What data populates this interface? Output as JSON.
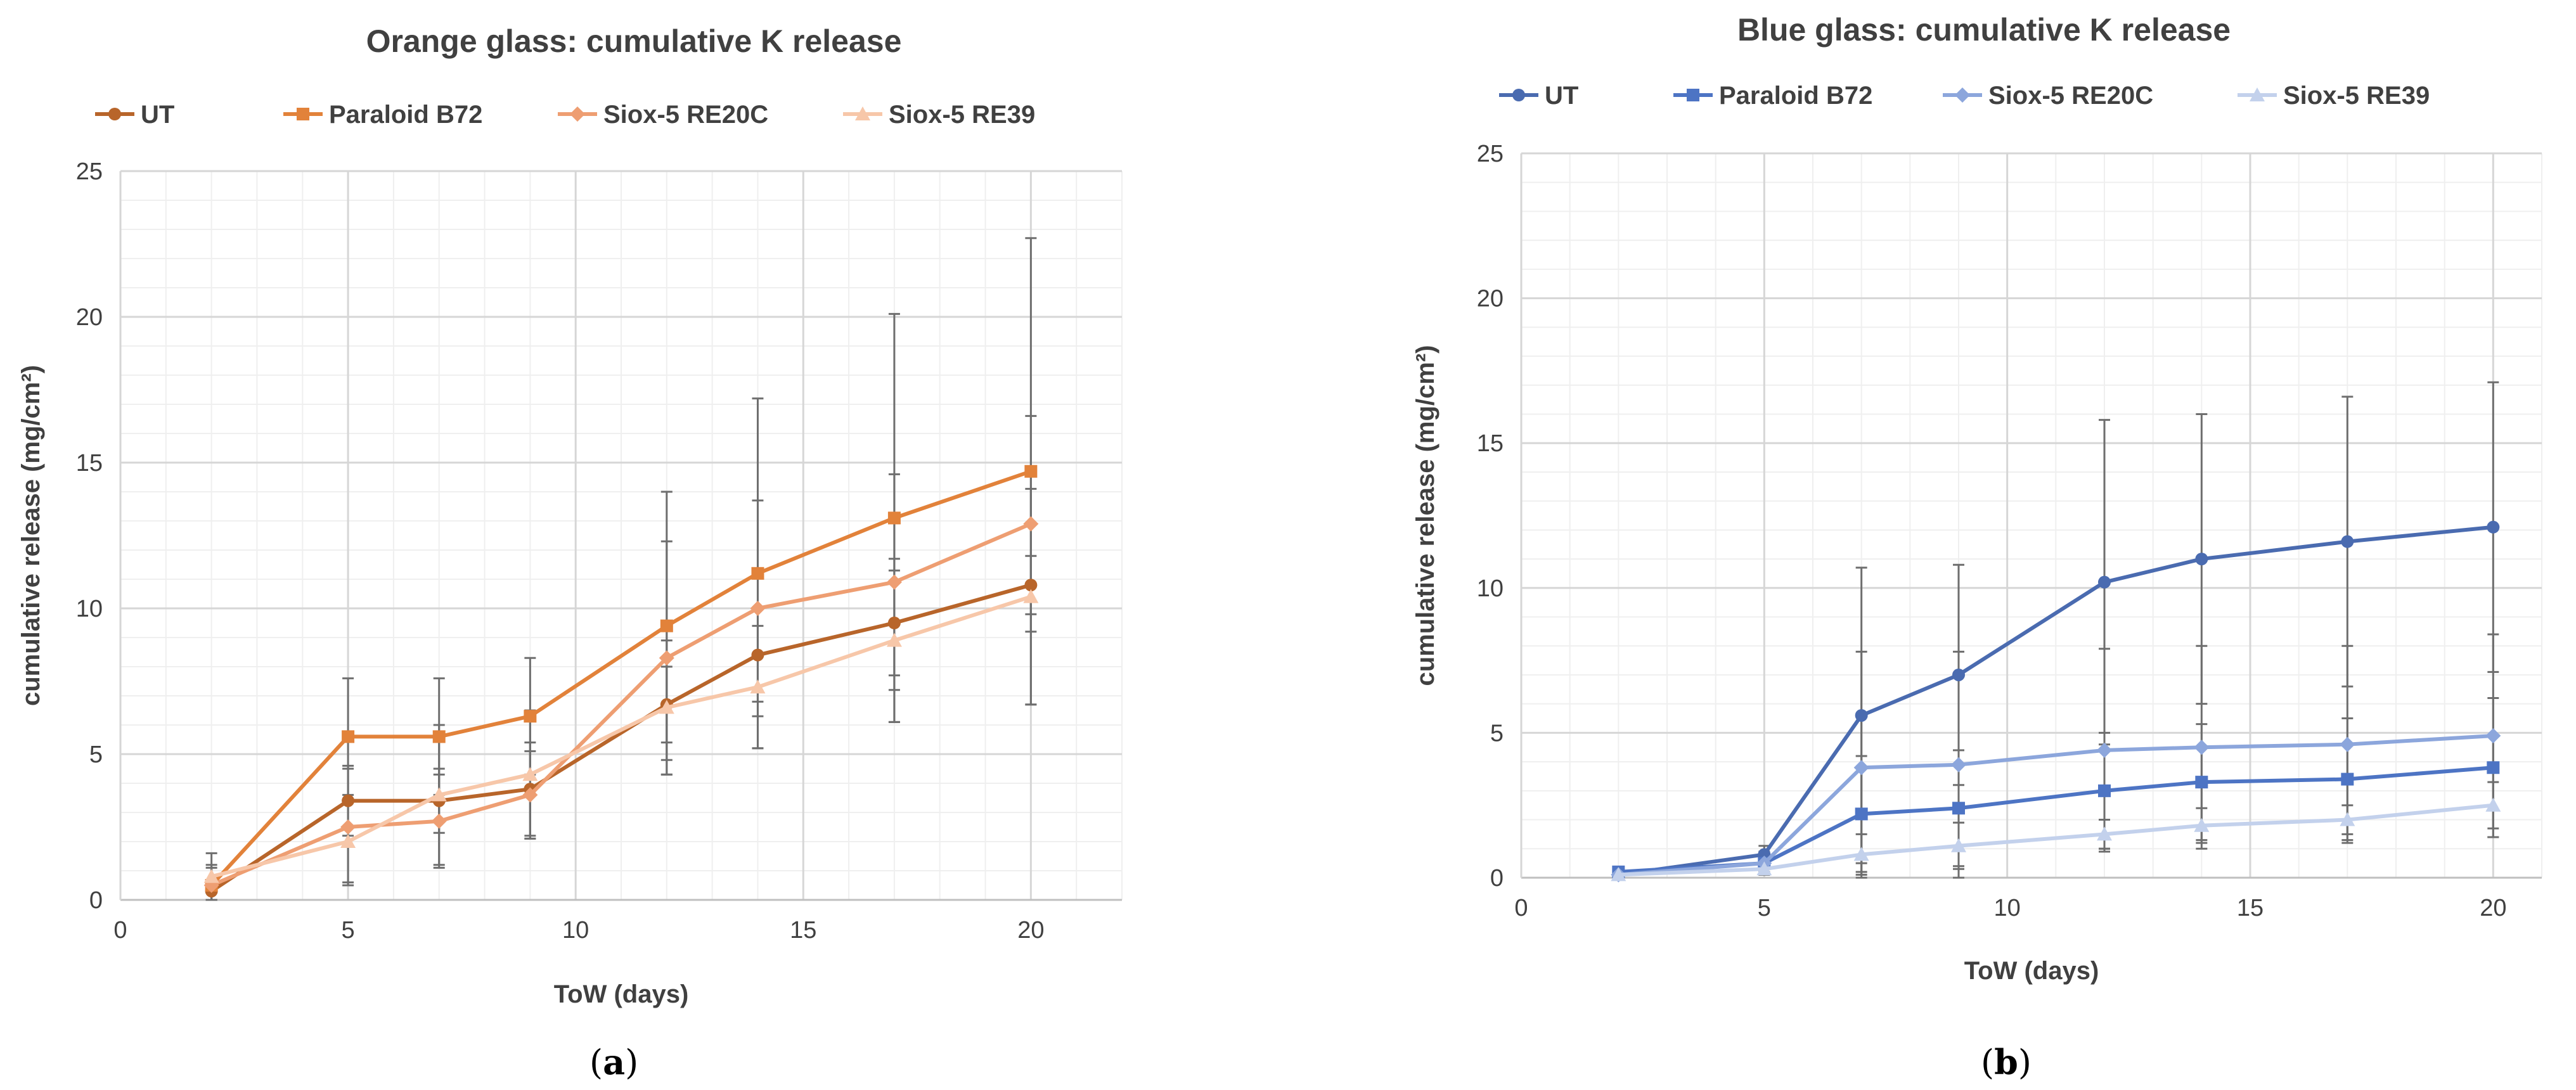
{
  "panels": [
    {
      "label_open": "(",
      "label_letter": "a",
      "label_close": ")"
    },
    {
      "label_open": "(",
      "label_letter": "b",
      "label_close": ")"
    }
  ],
  "chart_data": [
    {
      "type": "line",
      "title": "Orange glass: cumulative K release",
      "xlabel": "ToW (days)",
      "ylabel": "cumulative release (mg/cm²)",
      "xlim": [
        0,
        22
      ],
      "ylim": [
        0,
        25
      ],
      "xticks": [
        0,
        5,
        10,
        15,
        20
      ],
      "yticks": [
        0,
        5,
        10,
        15,
        20,
        25
      ],
      "grid": true,
      "legend_position": "top",
      "x": [
        2,
        5,
        7,
        9,
        12,
        14,
        17,
        20
      ],
      "series": [
        {
          "name": "UT",
          "marker": "circle",
          "color": "#B8652A",
          "values": [
            0.3,
            3.4,
            3.4,
            3.8,
            6.7,
            8.4,
            9.5,
            10.8
          ],
          "error": [
            0.3,
            1.2,
            1.1,
            1.6,
            1.3,
            1.6,
            1.8,
            1.0
          ]
        },
        {
          "name": "Paraloid B72",
          "marker": "square",
          "color": "#E2823A",
          "values": [
            0.5,
            5.6,
            5.6,
            6.3,
            9.4,
            11.2,
            13.1,
            14.7
          ],
          "error": [
            0.6,
            2.0,
            2.0,
            2.0,
            4.6,
            6.0,
            7.0,
            8.0
          ]
        },
        {
          "name": "Siox-5 RE20C",
          "marker": "diamond",
          "color": "#EE9E72",
          "values": [
            0.5,
            2.5,
            2.7,
            3.6,
            8.3,
            10.0,
            10.9,
            12.9
          ],
          "error": [
            0.7,
            2.0,
            1.6,
            1.5,
            4.0,
            3.7,
            3.7,
            3.7
          ]
        },
        {
          "name": "Siox-5 RE39",
          "marker": "triangle",
          "color": "#F7C7A9",
          "values": [
            0.8,
            2.0,
            3.6,
            4.3,
            6.6,
            7.3,
            8.9,
            10.4
          ],
          "error": [
            0.8,
            1.4,
            2.4,
            2.2,
            2.3,
            2.1,
            2.8,
            3.7
          ]
        }
      ]
    },
    {
      "type": "line",
      "title": "Blue glass: cumulative K release",
      "xlabel": "ToW (days)",
      "ylabel": "cumulative release (mg/cm²)",
      "xlim": [
        0,
        21
      ],
      "ylim": [
        0,
        25
      ],
      "xticks": [
        0,
        5,
        10,
        15,
        20
      ],
      "yticks": [
        0,
        5,
        10,
        15,
        20,
        25
      ],
      "grid": true,
      "legend_position": "top",
      "x": [
        2,
        5,
        7,
        9,
        12,
        14,
        17,
        20
      ],
      "series": [
        {
          "name": "UT",
          "marker": "circle",
          "color": "#4A6BB0",
          "values": [
            0.1,
            0.8,
            5.6,
            7.0,
            10.2,
            11.0,
            11.6,
            12.1
          ],
          "error": [
            0.1,
            0.3,
            5.1,
            3.8,
            5.6,
            5.0,
            5.0,
            5.0
          ]
        },
        {
          "name": "Paraloid B72",
          "marker": "square",
          "color": "#4D74C4",
          "values": [
            0.2,
            0.5,
            2.2,
            2.4,
            3.0,
            3.3,
            3.4,
            3.8
          ],
          "error": [
            0.1,
            0.3,
            2.0,
            2.0,
            2.0,
            2.0,
            2.1,
            2.4
          ]
        },
        {
          "name": "Siox-5 RE20C",
          "marker": "diamond",
          "color": "#8CA6DC",
          "values": [
            0.1,
            0.5,
            3.8,
            3.9,
            4.4,
            4.5,
            4.6,
            4.9
          ],
          "error": [
            0.1,
            0.4,
            4.0,
            3.9,
            3.5,
            3.5,
            3.4,
            3.5
          ]
        },
        {
          "name": "Siox-5 RE39",
          "marker": "triangle",
          "color": "#C3D1EC",
          "values": [
            0.1,
            0.3,
            0.8,
            1.1,
            1.5,
            1.8,
            2.0,
            2.5
          ],
          "error": [
            0.1,
            0.2,
            0.7,
            0.8,
            0.5,
            0.6,
            0.5,
            0.8
          ]
        }
      ]
    }
  ]
}
